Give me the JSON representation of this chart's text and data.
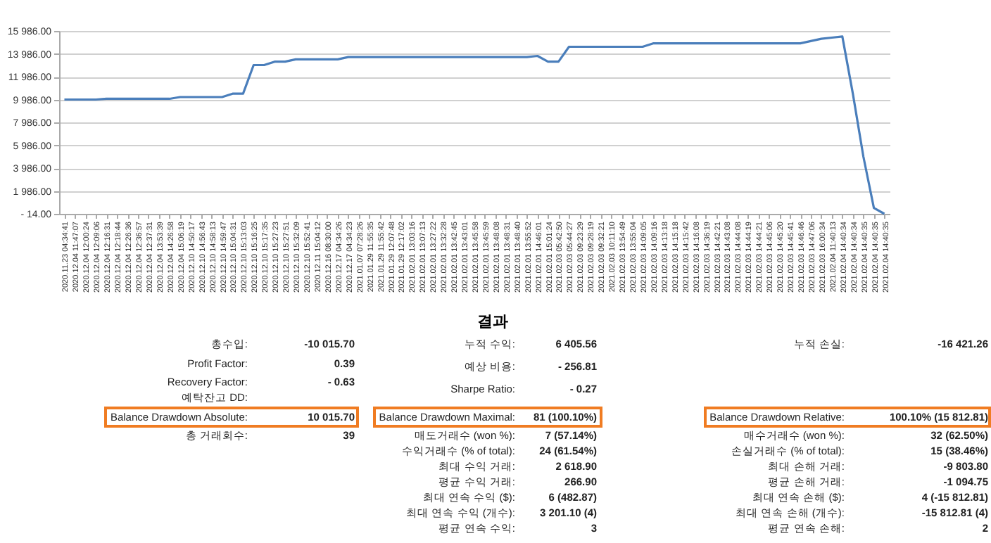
{
  "chart_data": {
    "type": "line",
    "categories": [
      "2020.11.23 04:34:41",
      "2020.12.04 11:47:07",
      "2020.12.04 12:00:24",
      "2020.12.04 12:09:06",
      "2020.12.04 12:16:31",
      "2020.12.04 12:18:44",
      "2020.12.04 12:26:36",
      "2020.12.04 12:36:57",
      "2020.12.04 12:37:31",
      "2020.12.04 13:53:39",
      "2020.12.04 14:26:58",
      "2020.12.04 15:06:19",
      "2020.12.10 14:50:17",
      "2020.12.10 14:56:43",
      "2020.12.10 14:58:13",
      "2020.12.10 14:59:47",
      "2020.12.10 15:04:31",
      "2020.12.10 15:13:03",
      "2020.12.10 15:16:25",
      "2020.12.10 15:17:35",
      "2020.12.10 15:27:23",
      "2020.12.10 15:27:51",
      "2020.12.10 15:32:09",
      "2020.12.10 15:52:41",
      "2020.12.11 15:04:12",
      "2020.12.16 08:30:00",
      "2020.12.17 04:34:26",
      "2020.12.17 04:34:23",
      "2021.01.07 07:28:26",
      "2021.01.29 11:55:35",
      "2021.01.29 11:55:42",
      "2021.01.29 12:07:48",
      "2021.01.29 12:17:02",
      "2021.02.01 13:03:16",
      "2021.02.01 13:07:13",
      "2021.02.01 13:27:22",
      "2021.02.01 13:32:28",
      "2021.02.01 13:42:45",
      "2021.02.01 13:43:01",
      "2021.02.01 13:45:58",
      "2021.02.01 13:45:59",
      "2021.02.01 13:48:08",
      "2021.02.01 13:48:31",
      "2021.02.01 13:48:40",
      "2021.02.01 13:55:52",
      "2021.02.01 14:46:01",
      "2021.02.01 15:01:24",
      "2021.02.03 05:42:50",
      "2021.02.03 05:44:27",
      "2021.02.03 09:23:29",
      "2021.02.03 09:28:19",
      "2021.02.03 09:32:21",
      "2021.02.03 10:11:10",
      "2021.02.03 13:54:49",
      "2021.02.03 13:55:04",
      "2021.02.03 14:09:05",
      "2021.02.03 14:09:16",
      "2021.02.03 14:13:18",
      "2021.02.03 14:15:18",
      "2021.02.03 14:15:42",
      "2021.02.03 14:16:08",
      "2021.02.03 14:36:19",
      "2021.02.03 14:42:21",
      "2021.02.03 14:43:08",
      "2021.02.03 14:44:08",
      "2021.02.03 14:44:19",
      "2021.02.03 14:44:21",
      "2021.02.03 14:45:06",
      "2021.02.03 14:45:20",
      "2021.02.03 14:45:41",
      "2021.02.03 14:46:46",
      "2021.02.03 14:47:06",
      "2021.02.03 16:00:34",
      "2021.02.04 11:40:13",
      "2021.02.04 14:40:34",
      "2021.02.04 14:40:34",
      "2021.02.04 14:40:35",
      "2021.02.04 14:40:35",
      "2021.02.04 14:40:35"
    ],
    "series": [
      {
        "color": "#4a7ebb",
        "values": [
          9986,
          9986,
          9986,
          9986,
          10050,
          10050,
          10050,
          10050,
          10050,
          10050,
          10050,
          10200,
          10200,
          10200,
          10200,
          10200,
          10500,
          10500,
          13000,
          13000,
          13300,
          13300,
          13500,
          13500,
          13500,
          13500,
          13500,
          13700,
          13700,
          13700,
          13700,
          13700,
          13700,
          13700,
          13700,
          13700,
          13700,
          13700,
          13700,
          13700,
          13700,
          13700,
          13700,
          13700,
          13700,
          13800,
          13300,
          13300,
          14600,
          14600,
          14600,
          14600,
          14600,
          14600,
          14600,
          14600,
          14900,
          14900,
          14900,
          14900,
          14900,
          14900,
          14900,
          14900,
          14900,
          14900,
          14900,
          14900,
          14900,
          14900,
          14900,
          15100,
          15300,
          15400,
          15500,
          10500,
          5000,
          500,
          -14
        ]
      }
    ],
    "ylim": [
      -14,
      15986
    ],
    "yticks": [
      {
        "value": -14,
        "label": "- 14.00"
      },
      {
        "value": 1986,
        "label": "1 986.00"
      },
      {
        "value": 3986,
        "label": "3 986.00"
      },
      {
        "value": 5986,
        "label": "5 986.00"
      },
      {
        "value": 7986,
        "label": "7 986.00"
      },
      {
        "value": 9986,
        "label": "9 986.00"
      },
      {
        "value": 11986,
        "label": "11 986.00"
      },
      {
        "value": 13986,
        "label": "13 986.00"
      },
      {
        "value": 15986,
        "label": "15 986.00"
      }
    ],
    "grid": "y",
    "legend": false,
    "marker": "none",
    "line_style": "solid",
    "annotations": [
      "총수입: -10 015.70",
      "Profit Factor: 0.39",
      "Recovery Factor: - 0.63",
      "예탁잔고 DD:",
      "Balance Drawdown Absolute: 10 015.70",
      "총 거래회수: 39",
      "결과",
      "누적 수익: 6 405.56",
      "예상 비용: - 256.81",
      "Sharpe Ratio: - 0.27",
      "Balance Drawdown Maximal: 81 (100.10%)",
      "매도거래수 (won %): 7 (57.14%)",
      "수익거래수 (% of total): 24 (61.54%)",
      "최대 수익 거래: 2 618.90",
      "평균 수익 거래: 266.90",
      "최대 연속 수익 ($): 6 (482.87)",
      "최대 연속 수익 (개수): 3 201.10 (4)",
      "평균 연속 수익: 3",
      "누적 손실: -16 421.26",
      "Balance Drawdown Relative: 100.10% (15 812.81)",
      "매수거래수 (won %): 32 (62.50%)",
      "손실거래수 (% of total): 15 (38.46%)",
      "최대 손해 거래: -9 803.80",
      "평균 손해 거래: -1 094.75",
      "최대 연속 손해 ($): 4 (-15 812.81)",
      "최대 연속 손해 (개수): -15 812.81 (4)",
      "평균 연속 손해: 2"
    ]
  }
}
